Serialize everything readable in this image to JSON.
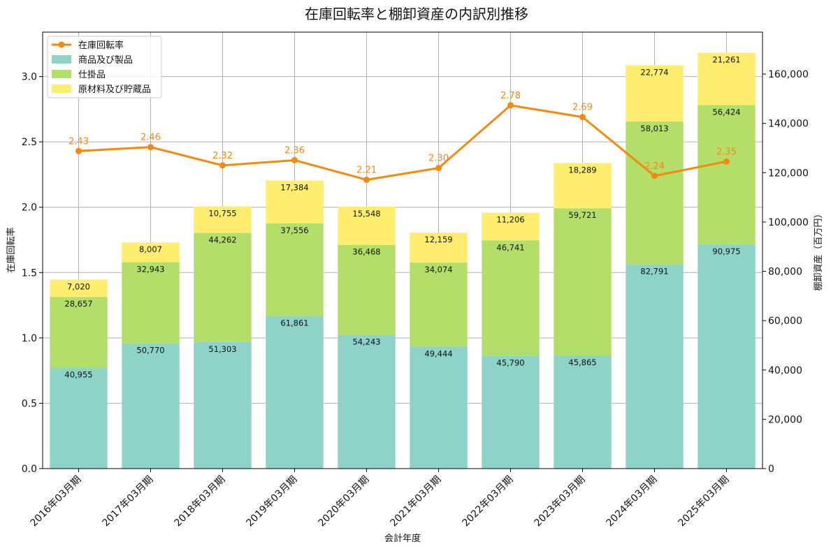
{
  "chart_data": {
    "type": "bar",
    "title": "在庫回転率と棚卸資産の内訳別推移",
    "xlabel": "会計年度",
    "ylabel": "在庫回転率",
    "y2label": "棚卸資産（百万円）",
    "categories": [
      "2016年03月期",
      "2017年03月期",
      "2018年03月期",
      "2019年03月期",
      "2020年03月期",
      "2021年03月期",
      "2022年03月期",
      "2023年03月期",
      "2024年03月期",
      "2025年03月期"
    ],
    "ylim": [
      0,
      3.34
    ],
    "y_ticks": [
      0.0,
      0.5,
      1.0,
      1.5,
      2.0,
      2.5,
      3.0
    ],
    "y_tick_labels": [
      "0.0",
      "0.5",
      "1.0",
      "1.5",
      "2.0",
      "2.5",
      "3.0"
    ],
    "y2lim": [
      0,
      177000
    ],
    "y2_ticks": [
      0,
      20000,
      40000,
      60000,
      80000,
      100000,
      120000,
      140000,
      160000
    ],
    "y2_tick_labels": [
      "0",
      "20,000",
      "40,000",
      "60,000",
      "80,000",
      "100,000",
      "120,000",
      "140,000",
      "160,000"
    ],
    "grid": true,
    "legend_position": "top-left",
    "bar_series": [
      {
        "name": "商品及び製品",
        "color": "#8dd3c7",
        "values": [
          40955,
          50770,
          51303,
          61861,
          54243,
          49444,
          45790,
          45865,
          82791,
          90975
        ],
        "labels": [
          "40,955",
          "50,770",
          "51,303",
          "61,861",
          "54,243",
          "49,444",
          "45,790",
          "45,865",
          "82,791",
          "90,975"
        ]
      },
      {
        "name": "仕掛品",
        "color": "#b3de69",
        "values": [
          28657,
          32943,
          44262,
          37556,
          36468,
          34074,
          46741,
          59721,
          58013,
          56424
        ],
        "labels": [
          "28,657",
          "32,943",
          "44,262",
          "37,556",
          "36,468",
          "34,074",
          "46,741",
          "59,721",
          "58,013",
          "56,424"
        ]
      },
      {
        "name": "原材料及び貯蔵品",
        "color": "#ffed6f",
        "values": [
          7020,
          8007,
          10755,
          17384,
          15548,
          12159,
          11206,
          18289,
          22774,
          21261
        ],
        "labels": [
          "7,020",
          "8,007",
          "10,755",
          "17,384",
          "15,548",
          "12,159",
          "11,206",
          "18,289",
          "22,774",
          "21,261"
        ]
      }
    ],
    "line_series": {
      "name": "在庫回転率",
      "color": "#f28a0f",
      "values": [
        2.43,
        2.46,
        2.32,
        2.36,
        2.21,
        2.3,
        2.78,
        2.69,
        2.24,
        2.35
      ],
      "labels": [
        "2.43",
        "2.46",
        "2.32",
        "2.36",
        "2.21",
        "2.30",
        "2.78",
        "2.69",
        "2.24",
        "2.35"
      ]
    }
  }
}
